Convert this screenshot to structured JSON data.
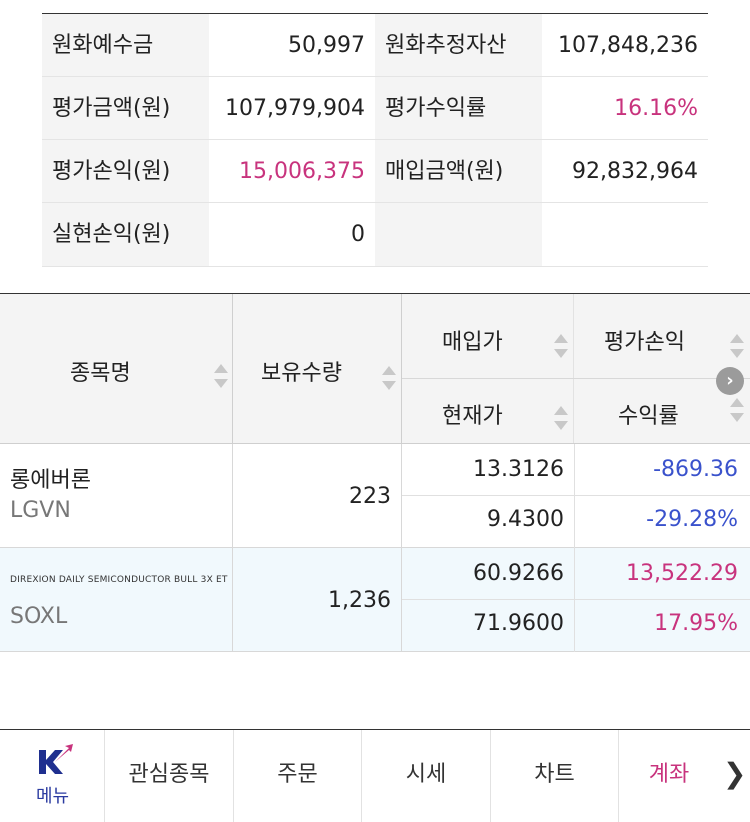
{
  "summary": {
    "rows": [
      {
        "label1": "원화예수금",
        "value1": "50,997",
        "label2": "원화추정자산",
        "value2": "107,848,236"
      },
      {
        "label1": "평가금액(원)",
        "value1": "107,979,904",
        "label2": "평가수익률",
        "value2": "16.16%"
      },
      {
        "label1": "평가손익(원)",
        "value1": "15,006,375",
        "label2": "매입금액(원)",
        "value2": "92,832,964"
      },
      {
        "label1": "실현손익(원)",
        "value1": "0"
      }
    ]
  },
  "holdings": {
    "headers": {
      "name": "종목명",
      "qty": "보유수량",
      "buy_price": "매입가",
      "current_price": "현재가",
      "eval_pl": "평가손익",
      "return_rate": "수익률"
    },
    "rows": [
      {
        "name": "롱에버론",
        "code": "LGVN",
        "qty": "223",
        "buy_price": "13.3126",
        "current_price": "9.4300",
        "eval_pl": "-869.36",
        "return_rate": "-29.28%"
      },
      {
        "name": "DIREXION DAILY SEMICONDUCTOR BULL 3X ET",
        "code": "SOXL",
        "qty": "1,236",
        "buy_price": "60.9266",
        "current_price": "71.9600",
        "eval_pl": "13,522.29",
        "return_rate": "17.95%"
      }
    ]
  },
  "nav": {
    "menu": "메뉴",
    "items": [
      "관심종목",
      "주문",
      "시세",
      "차트",
      "계좌"
    ],
    "active": "계좌",
    "next_icon": "chevron-right-icon"
  },
  "colors": {
    "positive": "#c8337d",
    "negative": "#3a52cc",
    "header_bg": "#f4f4f4",
    "alt_row_bg": "#f1f9fd"
  }
}
